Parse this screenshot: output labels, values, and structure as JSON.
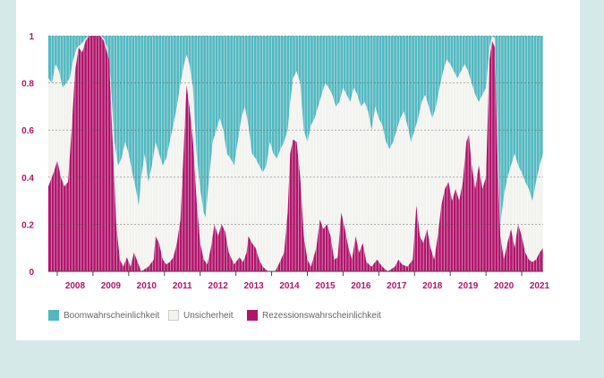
{
  "chart_data": {
    "type": "area",
    "title": "",
    "xlabel": "",
    "ylabel": "",
    "ylim": [
      0,
      1
    ],
    "ytick_labels": [
      "0",
      "0.2",
      "0.4",
      "0.6",
      "0.8",
      "1"
    ],
    "ytick_values": [
      0,
      0.2,
      0.4,
      0.6,
      0.8,
      1
    ],
    "x_start": 2007.75,
    "x_end": 2021.6,
    "xtick_labels": [
      "2008",
      "2009",
      "2010",
      "2011",
      "2012",
      "2013",
      "2014",
      "2015",
      "2016",
      "2017",
      "2018",
      "2019",
      "2020",
      "2021"
    ],
    "colors": {
      "boom": "#52b8c0",
      "uncertainty": "#f2f2ee",
      "recession": "#b0156c",
      "axis_text": "#b0156c",
      "grid": "#555555"
    },
    "series": [
      {
        "name": "Rezessionswahrscheinlichkeit",
        "points": [
          [
            2007.75,
            0.36
          ],
          [
            2007.9,
            0.42
          ],
          [
            2008.0,
            0.47
          ],
          [
            2008.1,
            0.4
          ],
          [
            2008.2,
            0.36
          ],
          [
            2008.3,
            0.38
          ],
          [
            2008.4,
            0.6
          ],
          [
            2008.5,
            0.85
          ],
          [
            2008.6,
            0.95
          ],
          [
            2008.7,
            0.93
          ],
          [
            2008.8,
            0.98
          ],
          [
            2008.9,
            1.0
          ],
          [
            2009.2,
            1.0
          ],
          [
            2009.3,
            0.98
          ],
          [
            2009.45,
            0.9
          ],
          [
            2009.55,
            0.55
          ],
          [
            2009.65,
            0.2
          ],
          [
            2009.75,
            0.05
          ],
          [
            2009.85,
            0.02
          ],
          [
            2009.95,
            0.06
          ],
          [
            2010.05,
            0.02
          ],
          [
            2010.15,
            0.08
          ],
          [
            2010.25,
            0.04
          ],
          [
            2010.35,
            0.0
          ],
          [
            2010.55,
            0.02
          ],
          [
            2010.7,
            0.05
          ],
          [
            2010.75,
            0.15
          ],
          [
            2010.85,
            0.12
          ],
          [
            2010.95,
            0.05
          ],
          [
            2011.05,
            0.03
          ],
          [
            2011.15,
            0.04
          ],
          [
            2011.25,
            0.06
          ],
          [
            2011.35,
            0.12
          ],
          [
            2011.45,
            0.22
          ],
          [
            2011.55,
            0.55
          ],
          [
            2011.62,
            0.79
          ],
          [
            2011.7,
            0.7
          ],
          [
            2011.8,
            0.55
          ],
          [
            2011.9,
            0.3
          ],
          [
            2012.0,
            0.12
          ],
          [
            2012.1,
            0.05
          ],
          [
            2012.2,
            0.03
          ],
          [
            2012.3,
            0.1
          ],
          [
            2012.4,
            0.2
          ],
          [
            2012.5,
            0.15
          ],
          [
            2012.6,
            0.2
          ],
          [
            2012.7,
            0.17
          ],
          [
            2012.8,
            0.08
          ],
          [
            2012.95,
            0.03
          ],
          [
            2013.1,
            0.06
          ],
          [
            2013.2,
            0.04
          ],
          [
            2013.3,
            0.08
          ],
          [
            2013.35,
            0.15
          ],
          [
            2013.45,
            0.12
          ],
          [
            2013.55,
            0.1
          ],
          [
            2013.65,
            0.05
          ],
          [
            2013.75,
            0.02
          ],
          [
            2013.9,
            0.0
          ],
          [
            2014.1,
            0.0
          ],
          [
            2014.2,
            0.03
          ],
          [
            2014.35,
            0.08
          ],
          [
            2014.45,
            0.25
          ],
          [
            2014.52,
            0.5
          ],
          [
            2014.6,
            0.56
          ],
          [
            2014.7,
            0.55
          ],
          [
            2014.8,
            0.4
          ],
          [
            2014.9,
            0.15
          ],
          [
            2015.0,
            0.05
          ],
          [
            2015.1,
            0.02
          ],
          [
            2015.25,
            0.1
          ],
          [
            2015.35,
            0.22
          ],
          [
            2015.45,
            0.18
          ],
          [
            2015.55,
            0.2
          ],
          [
            2015.65,
            0.15
          ],
          [
            2015.75,
            0.05
          ],
          [
            2015.85,
            0.06
          ],
          [
            2015.95,
            0.25
          ],
          [
            2016.05,
            0.18
          ],
          [
            2016.15,
            0.1
          ],
          [
            2016.25,
            0.05
          ],
          [
            2016.35,
            0.15
          ],
          [
            2016.45,
            0.08
          ],
          [
            2016.55,
            0.12
          ],
          [
            2016.65,
            0.04
          ],
          [
            2016.8,
            0.02
          ],
          [
            2016.95,
            0.05
          ],
          [
            2017.1,
            0.02
          ],
          [
            2017.25,
            0.0
          ],
          [
            2017.45,
            0.02
          ],
          [
            2017.55,
            0.05
          ],
          [
            2017.65,
            0.03
          ],
          [
            2017.8,
            0.02
          ],
          [
            2017.95,
            0.05
          ],
          [
            2018.05,
            0.28
          ],
          [
            2018.15,
            0.15
          ],
          [
            2018.25,
            0.12
          ],
          [
            2018.35,
            0.18
          ],
          [
            2018.45,
            0.1
          ],
          [
            2018.55,
            0.05
          ],
          [
            2018.65,
            0.15
          ],
          [
            2018.75,
            0.28
          ],
          [
            2018.85,
            0.35
          ],
          [
            2018.95,
            0.38
          ],
          [
            2019.05,
            0.3
          ],
          [
            2019.15,
            0.35
          ],
          [
            2019.25,
            0.3
          ],
          [
            2019.35,
            0.38
          ],
          [
            2019.45,
            0.55
          ],
          [
            2019.52,
            0.58
          ],
          [
            2019.6,
            0.45
          ],
          [
            2019.7,
            0.35
          ],
          [
            2019.8,
            0.45
          ],
          [
            2019.9,
            0.35
          ],
          [
            2020.0,
            0.4
          ],
          [
            2020.1,
            0.9
          ],
          [
            2020.17,
            0.98
          ],
          [
            2020.25,
            0.95
          ],
          [
            2020.32,
            0.5
          ],
          [
            2020.4,
            0.15
          ],
          [
            2020.5,
            0.05
          ],
          [
            2020.6,
            0.12
          ],
          [
            2020.7,
            0.18
          ],
          [
            2020.8,
            0.1
          ],
          [
            2020.9,
            0.2
          ],
          [
            2021.0,
            0.15
          ],
          [
            2021.1,
            0.08
          ],
          [
            2021.2,
            0.05
          ],
          [
            2021.3,
            0.04
          ],
          [
            2021.4,
            0.05
          ],
          [
            2021.5,
            0.08
          ],
          [
            2021.6,
            0.1
          ]
        ]
      },
      {
        "name": "Unsicherheit",
        "note": "stacked top boundary (recession + uncertainty)",
        "points": [
          [
            2007.75,
            0.82
          ],
          [
            2007.85,
            0.8
          ],
          [
            2007.95,
            0.88
          ],
          [
            2008.05,
            0.85
          ],
          [
            2008.15,
            0.78
          ],
          [
            2008.25,
            0.8
          ],
          [
            2008.35,
            0.82
          ],
          [
            2008.45,
            0.9
          ],
          [
            2008.55,
            0.95
          ],
          [
            2008.7,
            0.97
          ],
          [
            2008.8,
            0.99
          ],
          [
            2008.9,
            1.0
          ],
          [
            2009.2,
            1.0
          ],
          [
            2009.3,
            0.99
          ],
          [
            2009.4,
            0.95
          ],
          [
            2009.5,
            0.8
          ],
          [
            2009.6,
            0.55
          ],
          [
            2009.7,
            0.45
          ],
          [
            2009.8,
            0.48
          ],
          [
            2009.9,
            0.55
          ],
          [
            2010.0,
            0.5
          ],
          [
            2010.1,
            0.42
          ],
          [
            2010.2,
            0.35
          ],
          [
            2010.28,
            0.28
          ],
          [
            2010.35,
            0.4
          ],
          [
            2010.45,
            0.5
          ],
          [
            2010.55,
            0.38
          ],
          [
            2010.65,
            0.45
          ],
          [
            2010.75,
            0.55
          ],
          [
            2010.85,
            0.5
          ],
          [
            2010.95,
            0.45
          ],
          [
            2011.05,
            0.48
          ],
          [
            2011.15,
            0.55
          ],
          [
            2011.25,
            0.62
          ],
          [
            2011.35,
            0.7
          ],
          [
            2011.45,
            0.8
          ],
          [
            2011.55,
            0.88
          ],
          [
            2011.62,
            0.92
          ],
          [
            2011.7,
            0.88
          ],
          [
            2011.8,
            0.78
          ],
          [
            2011.9,
            0.5
          ],
          [
            2012.0,
            0.35
          ],
          [
            2012.1,
            0.25
          ],
          [
            2012.15,
            0.23
          ],
          [
            2012.25,
            0.4
          ],
          [
            2012.35,
            0.55
          ],
          [
            2012.45,
            0.6
          ],
          [
            2012.55,
            0.65
          ],
          [
            2012.65,
            0.6
          ],
          [
            2012.75,
            0.5
          ],
          [
            2012.85,
            0.48
          ],
          [
            2012.95,
            0.45
          ],
          [
            2013.05,
            0.55
          ],
          [
            2013.15,
            0.65
          ],
          [
            2013.25,
            0.7
          ],
          [
            2013.35,
            0.62
          ],
          [
            2013.45,
            0.5
          ],
          [
            2013.55,
            0.48
          ],
          [
            2013.65,
            0.45
          ],
          [
            2013.75,
            0.42
          ],
          [
            2013.85,
            0.45
          ],
          [
            2013.95,
            0.55
          ],
          [
            2014.05,
            0.5
          ],
          [
            2014.15,
            0.48
          ],
          [
            2014.25,
            0.52
          ],
          [
            2014.35,
            0.55
          ],
          [
            2014.45,
            0.6
          ],
          [
            2014.52,
            0.72
          ],
          [
            2014.6,
            0.82
          ],
          [
            2014.7,
            0.85
          ],
          [
            2014.8,
            0.8
          ],
          [
            2014.9,
            0.6
          ],
          [
            2015.0,
            0.55
          ],
          [
            2015.1,
            0.62
          ],
          [
            2015.2,
            0.65
          ],
          [
            2015.3,
            0.7
          ],
          [
            2015.4,
            0.75
          ],
          [
            2015.5,
            0.8
          ],
          [
            2015.6,
            0.78
          ],
          [
            2015.7,
            0.75
          ],
          [
            2015.8,
            0.7
          ],
          [
            2015.9,
            0.72
          ],
          [
            2016.0,
            0.78
          ],
          [
            2016.1,
            0.75
          ],
          [
            2016.2,
            0.72
          ],
          [
            2016.3,
            0.78
          ],
          [
            2016.4,
            0.75
          ],
          [
            2016.5,
            0.7
          ],
          [
            2016.6,
            0.72
          ],
          [
            2016.7,
            0.68
          ],
          [
            2016.8,
            0.6
          ],
          [
            2016.9,
            0.7
          ],
          [
            2017.0,
            0.65
          ],
          [
            2017.1,
            0.62
          ],
          [
            2017.2,
            0.55
          ],
          [
            2017.3,
            0.52
          ],
          [
            2017.4,
            0.55
          ],
          [
            2017.5,
            0.6
          ],
          [
            2017.6,
            0.65
          ],
          [
            2017.7,
            0.68
          ],
          [
            2017.8,
            0.62
          ],
          [
            2017.9,
            0.55
          ],
          [
            2018.0,
            0.6
          ],
          [
            2018.1,
            0.65
          ],
          [
            2018.2,
            0.72
          ],
          [
            2018.3,
            0.75
          ],
          [
            2018.4,
            0.7
          ],
          [
            2018.5,
            0.65
          ],
          [
            2018.6,
            0.7
          ],
          [
            2018.7,
            0.78
          ],
          [
            2018.8,
            0.85
          ],
          [
            2018.9,
            0.9
          ],
          [
            2019.0,
            0.88
          ],
          [
            2019.1,
            0.85
          ],
          [
            2019.2,
            0.82
          ],
          [
            2019.3,
            0.85
          ],
          [
            2019.4,
            0.88
          ],
          [
            2019.5,
            0.85
          ],
          [
            2019.6,
            0.8
          ],
          [
            2019.7,
            0.75
          ],
          [
            2019.8,
            0.72
          ],
          [
            2019.9,
            0.75
          ],
          [
            2020.0,
            0.78
          ],
          [
            2020.1,
            0.95
          ],
          [
            2020.17,
            1.0
          ],
          [
            2020.25,
            0.99
          ],
          [
            2020.32,
            0.6
          ],
          [
            2020.4,
            0.2
          ],
          [
            2020.5,
            0.32
          ],
          [
            2020.6,
            0.4
          ],
          [
            2020.7,
            0.45
          ],
          [
            2020.8,
            0.5
          ],
          [
            2020.9,
            0.45
          ],
          [
            2021.0,
            0.42
          ],
          [
            2021.1,
            0.38
          ],
          [
            2021.2,
            0.35
          ],
          [
            2021.3,
            0.3
          ],
          [
            2021.4,
            0.38
          ],
          [
            2021.5,
            0.45
          ],
          [
            2021.6,
            0.5
          ]
        ]
      },
      {
        "name": "Boomwahrscheinlichkeit",
        "note": "fills from the uncertainty boundary up to 1",
        "points": []
      }
    ],
    "legend": [
      {
        "key": "boom",
        "label": "Boomwahrscheinlichkeit",
        "color": "#52b8c0"
      },
      {
        "key": "uncertainty",
        "label": "Unsicherheit",
        "color": "#f2f2ee"
      },
      {
        "key": "recession",
        "label": "Rezessionswahrscheinlichkeit",
        "color": "#b0156c"
      }
    ],
    "legend_position": "bottom-left",
    "grid": true
  }
}
